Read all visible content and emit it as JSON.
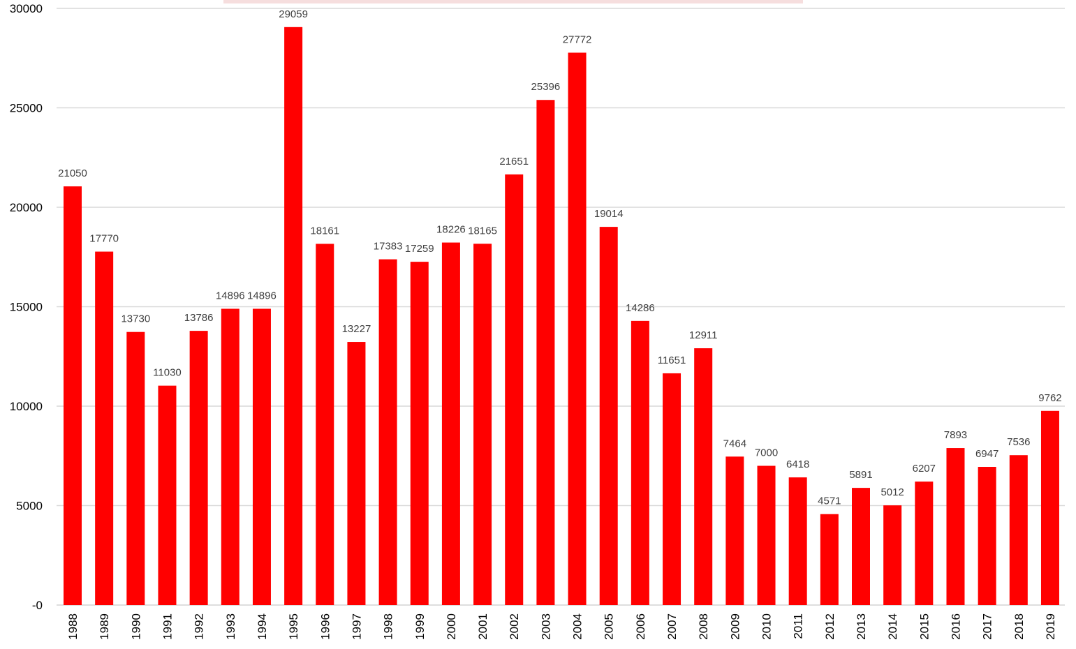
{
  "chart_data": {
    "type": "bar",
    "categories": [
      "1988",
      "1989",
      "1990",
      "1991",
      "1992",
      "1993",
      "1994",
      "1995",
      "1996",
      "1997",
      "1998",
      "1999",
      "2000",
      "2001",
      "2002",
      "2003",
      "2004",
      "2005",
      "2006",
      "2007",
      "2008",
      "2009",
      "2010",
      "2011",
      "2012",
      "2013",
      "2014",
      "2015",
      "2016",
      "2017",
      "2018",
      "2019"
    ],
    "values": [
      21050,
      17770,
      13730,
      11030,
      13786,
      14896,
      14896,
      29059,
      18161,
      13227,
      17383,
      17259,
      18226,
      18165,
      21651,
      25396,
      27772,
      19014,
      14286,
      11651,
      12911,
      7464,
      7000,
      6418,
      4571,
      5891,
      5012,
      6207,
      7893,
      6947,
      7536,
      9762
    ],
    "data_labels": [
      "21050",
      "17770",
      "13730",
      "11030",
      "13786",
      "14896",
      "14896",
      "29059",
      "18161",
      "13227",
      "17383",
      "17259",
      "18226",
      "18165",
      "21651",
      "25396",
      "27772",
      "19014",
      "14286",
      "11651",
      "12911",
      "7464",
      "7000",
      "6418",
      "4571",
      "5891",
      "5012",
      "6207",
      "7893",
      "6947",
      "7536",
      "9762"
    ],
    "y_ticks": [
      0,
      5000,
      10000,
      15000,
      20000,
      25000,
      30000
    ],
    "y_tick_labels": [
      "-0",
      "5000",
      "10000",
      "15000",
      "20000",
      "25000",
      "30000"
    ],
    "ylim": [
      0,
      30000
    ],
    "grid": true,
    "bar_color": "#ff0000",
    "grid_color": "#d9d9d9",
    "label_color": "#404040",
    "legend": "none"
  }
}
